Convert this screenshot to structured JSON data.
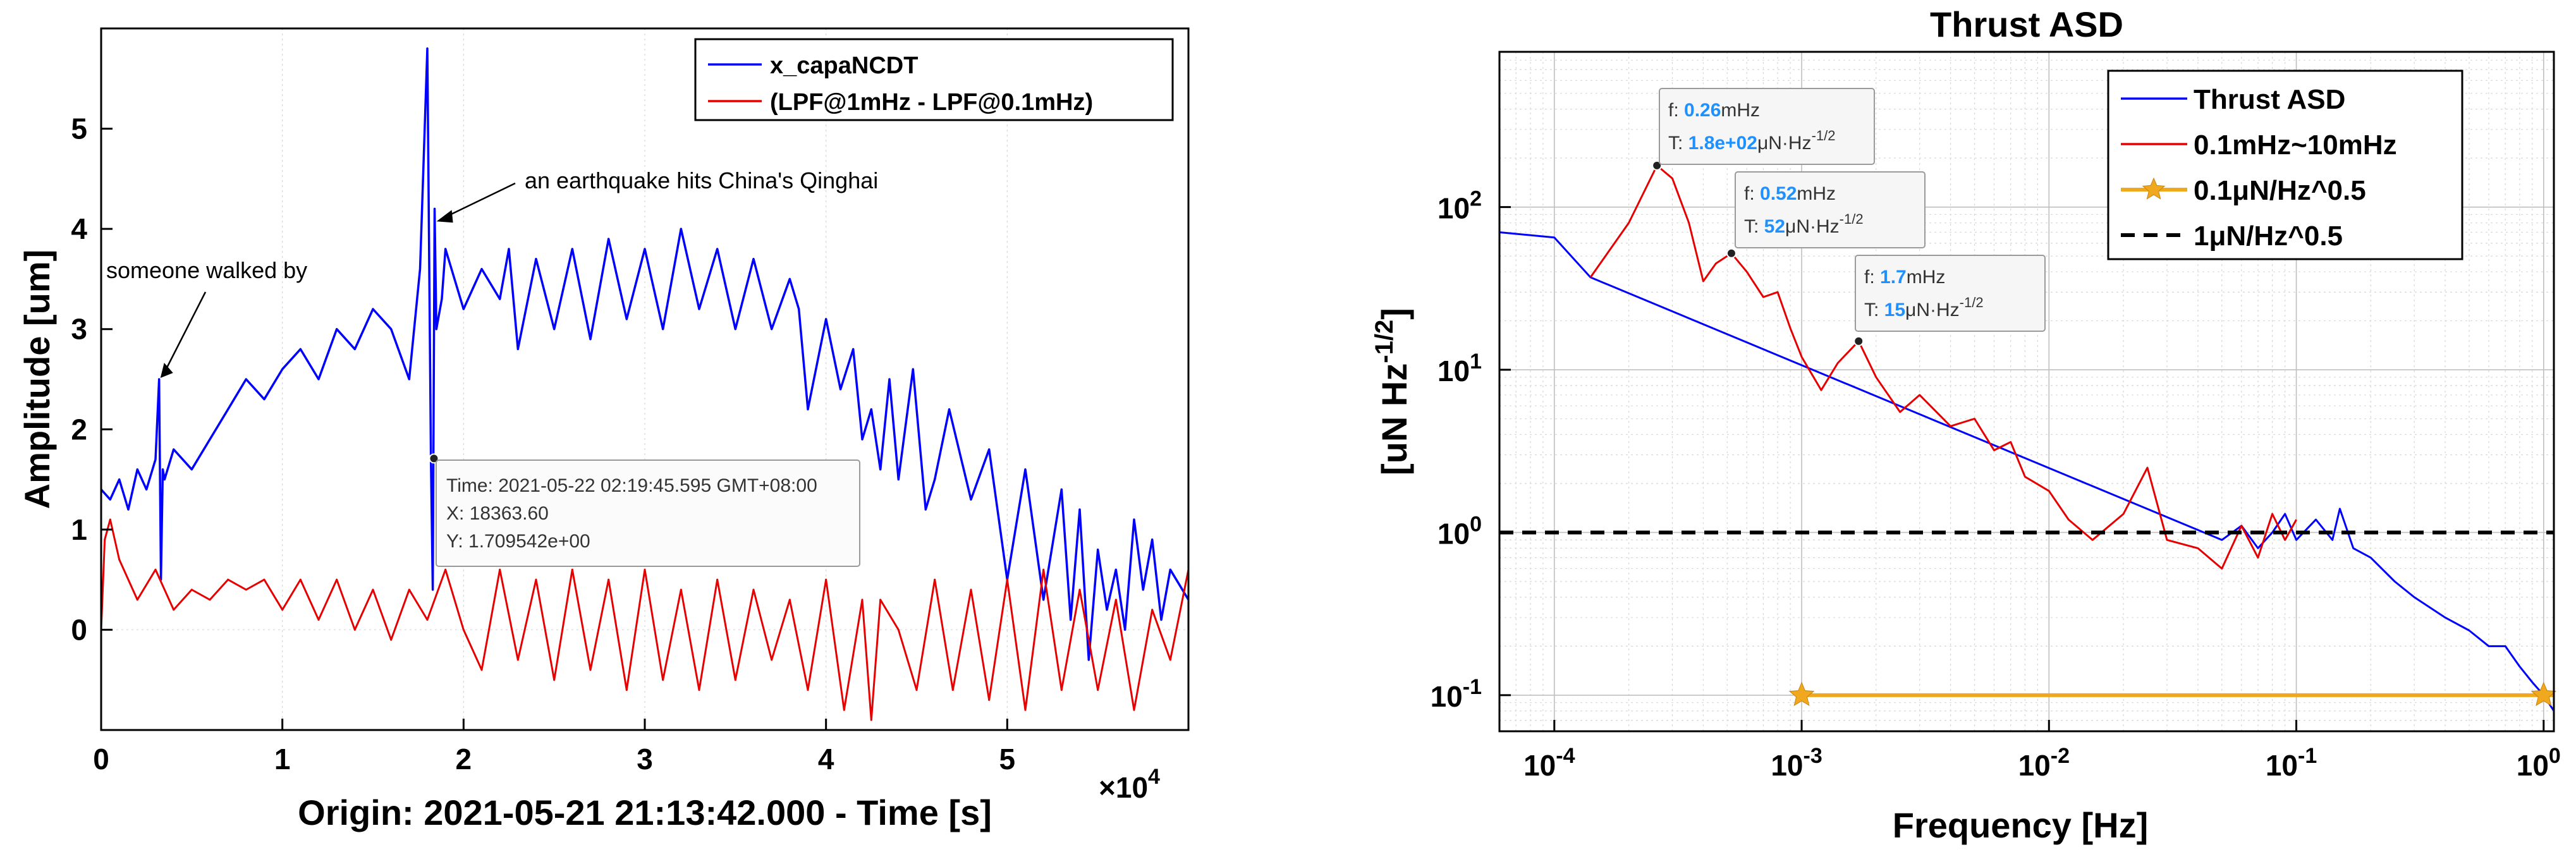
{
  "chart_data": [
    {
      "type": "line",
      "xlabel": "Origin: 2021-05-21 21:13:42.000 - Time  [s]",
      "xscale_label": "×10",
      "xscale_exp": "4",
      "ylabel": "Amplitude  [um]",
      "xlim": [
        0,
        60000
      ],
      "ylim": [
        -1.0,
        6.0
      ],
      "xticks": [
        0,
        10000,
        20000,
        30000,
        40000,
        50000
      ],
      "xtick_labels": [
        "0",
        "1",
        "2",
        "3",
        "4",
        "5"
      ],
      "yticks": [
        0,
        1,
        2,
        3,
        4,
        5
      ],
      "ytick_labels": [
        "0",
        "1",
        "2",
        "3",
        "4",
        "5"
      ],
      "legend": [
        "x_capaNCDT",
        "(LPF@1mHz - LPF@0.1mHz)"
      ],
      "series": [
        {
          "name": "x_capaNCDT",
          "color": "#0000ff",
          "x": [
            0,
            500,
            1000,
            1500,
            2000,
            2500,
            3000,
            3200,
            3300,
            3400,
            3500,
            4000,
            5000,
            6000,
            7000,
            8000,
            9000,
            10000,
            11000,
            12000,
            13000,
            14000,
            15000,
            16000,
            17000,
            17600,
            18000,
            18200,
            18300,
            18400,
            18500,
            18800,
            19000,
            20000,
            21000,
            22000,
            22500,
            23000,
            24000,
            25000,
            26000,
            27000,
            28000,
            29000,
            30000,
            31000,
            32000,
            33000,
            34000,
            35000,
            36000,
            37000,
            38000,
            38500,
            39000,
            40000,
            40800,
            41500,
            42000,
            42500,
            43000,
            43500,
            44000,
            44800,
            45500,
            46000,
            46800,
            48000,
            49000,
            50000,
            51000,
            52000,
            53000,
            53500,
            54000,
            54500,
            55000,
            55500,
            56000,
            56500,
            57000,
            57500,
            58000,
            58500,
            59000,
            60000
          ],
          "values": [
            1.4,
            1.3,
            1.5,
            1.2,
            1.6,
            1.4,
            1.7,
            2.5,
            0.5,
            1.6,
            1.5,
            1.8,
            1.6,
            1.9,
            2.2,
            2.5,
            2.3,
            2.6,
            2.8,
            2.5,
            3.0,
            2.8,
            3.2,
            3.0,
            2.5,
            3.6,
            5.8,
            1.7,
            0.4,
            4.2,
            3.0,
            3.3,
            3.8,
            3.2,
            3.6,
            3.3,
            3.8,
            2.8,
            3.7,
            3.0,
            3.8,
            2.9,
            3.9,
            3.1,
            3.8,
            3.0,
            4.0,
            3.2,
            3.8,
            3.0,
            3.7,
            3.0,
            3.5,
            3.2,
            2.2,
            3.1,
            2.4,
            2.8,
            1.9,
            2.2,
            1.6,
            2.5,
            1.5,
            2.6,
            1.2,
            1.5,
            2.2,
            1.3,
            1.8,
            0.5,
            1.6,
            0.3,
            1.4,
            0.1,
            1.2,
            -0.3,
            0.8,
            0.2,
            0.6,
            0.0,
            1.1,
            0.4,
            0.9,
            0.1,
            0.6,
            0.3
          ]
        },
        {
          "name": "(LPF@1mHz - LPF@0.1mHz)",
          "color": "#e60000",
          "x": [
            0,
            200,
            500,
            1000,
            2000,
            3000,
            4000,
            5000,
            6000,
            7000,
            8000,
            9000,
            10000,
            11000,
            12000,
            13000,
            14000,
            15000,
            16000,
            17000,
            18000,
            19000,
            20000,
            21000,
            22000,
            23000,
            24000,
            25000,
            26000,
            27000,
            28000,
            29000,
            30000,
            31000,
            32000,
            33000,
            34000,
            35000,
            36000,
            37000,
            38000,
            39000,
            40000,
            41000,
            42000,
            42500,
            43000,
            44000,
            45000,
            46000,
            47000,
            48000,
            49000,
            50000,
            51000,
            52000,
            53000,
            54000,
            55000,
            56000,
            57000,
            58000,
            59000,
            60000
          ],
          "values": [
            0.0,
            0.9,
            1.1,
            0.7,
            0.3,
            0.6,
            0.2,
            0.4,
            0.3,
            0.5,
            0.4,
            0.5,
            0.2,
            0.5,
            0.1,
            0.5,
            0.0,
            0.4,
            -0.1,
            0.4,
            0.1,
            0.6,
            0.0,
            -0.4,
            0.6,
            -0.3,
            0.5,
            -0.5,
            0.6,
            -0.4,
            0.5,
            -0.6,
            0.6,
            -0.5,
            0.4,
            -0.6,
            0.5,
            -0.5,
            0.4,
            -0.3,
            0.3,
            -0.6,
            0.5,
            -0.8,
            0.3,
            -0.9,
            0.3,
            0.0,
            -0.6,
            0.5,
            -0.6,
            0.4,
            -0.7,
            0.5,
            -0.8,
            0.6,
            -0.6,
            0.4,
            -0.6,
            0.3,
            -0.8,
            0.2,
            -0.3,
            0.6
          ]
        }
      ],
      "annotations": [
        {
          "text": "someone walked by",
          "x": 3200,
          "y": 2.5
        },
        {
          "text": "an earthquake hits China's Qinghai",
          "x": 18300,
          "y": 4.1
        }
      ],
      "datatip": {
        "x": 18363.6,
        "y": 1.709542,
        "lines": [
          "Time: 2021-05-22 02:19:45.595 GMT+08:00",
          "X: 18363.60",
          "Y: 1.709542e+00"
        ]
      }
    },
    {
      "type": "line",
      "title": "Thrust ASD",
      "xlabel": "Frequency  [Hz]",
      "ylabel": "[uN Hz",
      "ylabel_sup": "-1/2",
      "ylabel_end": "]",
      "xscale": "log",
      "yscale": "log",
      "xlim": [
        6e-05,
        1.1
      ],
      "ylim": [
        0.06,
        900
      ],
      "xticks": [
        0.0001,
        0.001,
        0.01,
        0.1,
        1
      ],
      "xtick_bases": [
        "10",
        "10",
        "10",
        "10",
        "10"
      ],
      "xtick_exps": [
        "-4",
        "-3",
        "-2",
        "-1",
        "0"
      ],
      "yticks": [
        0.1,
        1,
        10,
        100
      ],
      "ytick_bases": [
        "10",
        "10",
        "10",
        "10"
      ],
      "ytick_exps": [
        "-1",
        "0",
        "1",
        "2"
      ],
      "legend": [
        "Thrust ASD",
        "0.1mHz~10mHz",
        "0.1μN/Hz^0.5",
        "1μN/Hz^0.5"
      ],
      "series": [
        {
          "name": "Thrust ASD",
          "color": "#0000ff",
          "x": [
            6e-05,
            0.0001,
            0.00014,
            0.05,
            0.06,
            0.07,
            0.08,
            0.09,
            0.1,
            0.12,
            0.14,
            0.15,
            0.17,
            0.2,
            0.25,
            0.3,
            0.4,
            0.5,
            0.6,
            0.7,
            0.8,
            0.9,
            1.0,
            1.1
          ],
          "values": [
            70,
            65,
            37,
            0.9,
            1.1,
            0.8,
            1.0,
            1.3,
            0.9,
            1.2,
            0.9,
            1.4,
            0.8,
            0.7,
            0.5,
            0.4,
            0.3,
            0.25,
            0.2,
            0.2,
            0.15,
            0.12,
            0.1,
            0.08
          ]
        },
        {
          "name": "0.1mHz~10mHz",
          "color": "#e60000",
          "x": [
            0.00014,
            0.0002,
            0.00026,
            0.0003,
            0.00035,
            0.0004,
            0.00045,
            0.00052,
            0.0006,
            0.0007,
            0.0008,
            0.0009,
            0.001,
            0.0012,
            0.0014,
            0.0017,
            0.002,
            0.0025,
            0.003,
            0.004,
            0.005,
            0.006,
            0.007,
            0.008,
            0.01,
            0.012,
            0.015,
            0.02,
            0.025,
            0.03,
            0.04,
            0.05,
            0.06,
            0.07,
            0.08,
            0.09,
            0.1
          ],
          "values": [
            37,
            80,
            180,
            150,
            80,
            35,
            45,
            52,
            40,
            28,
            30,
            18,
            12,
            7.5,
            11,
            15,
            9,
            5.5,
            7,
            4.5,
            5,
            3.2,
            3.6,
            2.2,
            1.8,
            1.2,
            0.9,
            1.3,
            2.5,
            0.9,
            0.8,
            0.6,
            1.1,
            0.7,
            1.3,
            0.9,
            1.2
          ]
        },
        {
          "name": "0.1μN/Hz^0.5",
          "color": "#f0a81e",
          "x": [
            0.001,
            1.1
          ],
          "values": [
            0.1,
            0.1
          ]
        },
        {
          "name": "1μN/Hz^0.5",
          "color": "#000000",
          "x": [
            6e-05,
            1.1
          ],
          "values": [
            1,
            1
          ]
        }
      ],
      "datatips": [
        {
          "f_label": "f:",
          "f_value": "0.26",
          "f_unit": "mHz",
          "t_label": "T:",
          "t_value": "1.8e+02",
          "t_unit": "μN·Hz",
          "t_exp": "-1/2",
          "x": 0.00026,
          "y": 180
        },
        {
          "f_label": "f:",
          "f_value": "0.52",
          "f_unit": "mHz",
          "t_label": "T:",
          "t_value": "52",
          "t_unit": "μN·Hz",
          "t_exp": "-1/2",
          "x": 0.00052,
          "y": 52
        },
        {
          "f_label": "f:",
          "f_value": "1.7",
          "f_unit": "mHz",
          "t_label": "T:",
          "t_value": "15",
          "t_unit": "μN·Hz",
          "t_exp": "-1/2",
          "x": 0.0017,
          "y": 15
        }
      ]
    }
  ]
}
